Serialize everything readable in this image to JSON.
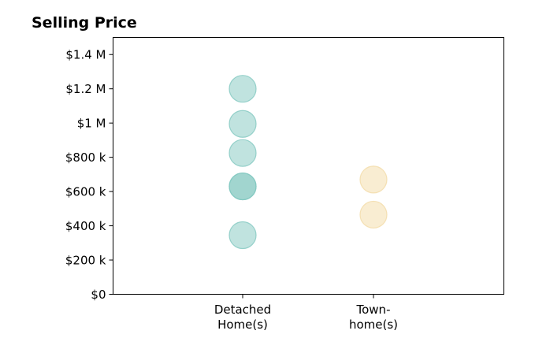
{
  "chart_data": {
    "type": "scatter",
    "title": "Selling Price",
    "xlabel": "",
    "ylabel": "",
    "categories": [
      [
        "Detached",
        "Home(s)"
      ],
      [
        "Town-",
        "home(s)"
      ]
    ],
    "ylim": [
      0,
      1500000
    ],
    "yticks": [
      0,
      200000,
      400000,
      600000,
      800000,
      1000000,
      1200000,
      1400000
    ],
    "ytick_labels": [
      "$0",
      "$200 k",
      "$400 k",
      "$600 k",
      "$800 k",
      "$1 M",
      "$1.2 M",
      "$1.4 M"
    ],
    "grid": false,
    "series": [
      {
        "category_index": 0,
        "color": "#82c8c0",
        "values": [
          1200000,
          995000,
          825000,
          630000,
          630000,
          345000
        ]
      },
      {
        "category_index": 1,
        "color": "#f3dba6",
        "values": [
          670000,
          465000
        ]
      }
    ]
  }
}
